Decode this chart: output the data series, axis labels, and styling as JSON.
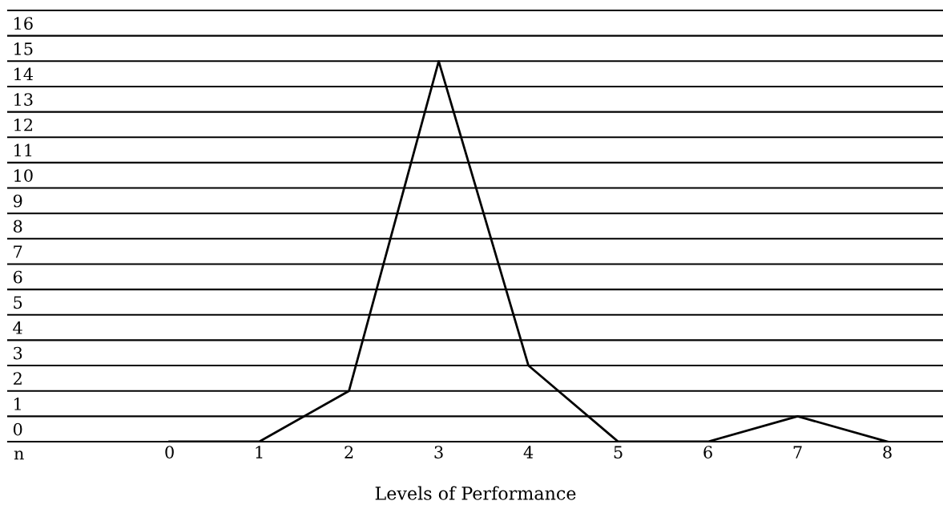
{
  "chart_data": {
    "type": "line",
    "xlabel": "Levels of Performance",
    "annotations": [
      "n"
    ],
    "x": [
      0,
      1,
      2,
      3,
      4,
      5,
      6,
      7,
      8
    ],
    "series": [
      {
        "color": "#000000",
        "values": [
          0,
          0,
          2,
          15,
          3,
          0,
          0,
          1,
          0
        ]
      }
    ],
    "xlim": [
      -1.8,
      8.62
    ],
    "xticks": [
      0,
      1,
      2,
      3,
      4,
      5,
      6,
      7,
      8
    ],
    "ylim": [
      0,
      17
    ],
    "yticks": [
      0,
      1,
      2,
      3,
      4,
      5,
      6,
      7,
      8,
      9,
      10,
      11,
      12,
      13,
      14,
      15,
      16
    ],
    "grid": "y",
    "marker": "none",
    "line_style": "solid"
  }
}
